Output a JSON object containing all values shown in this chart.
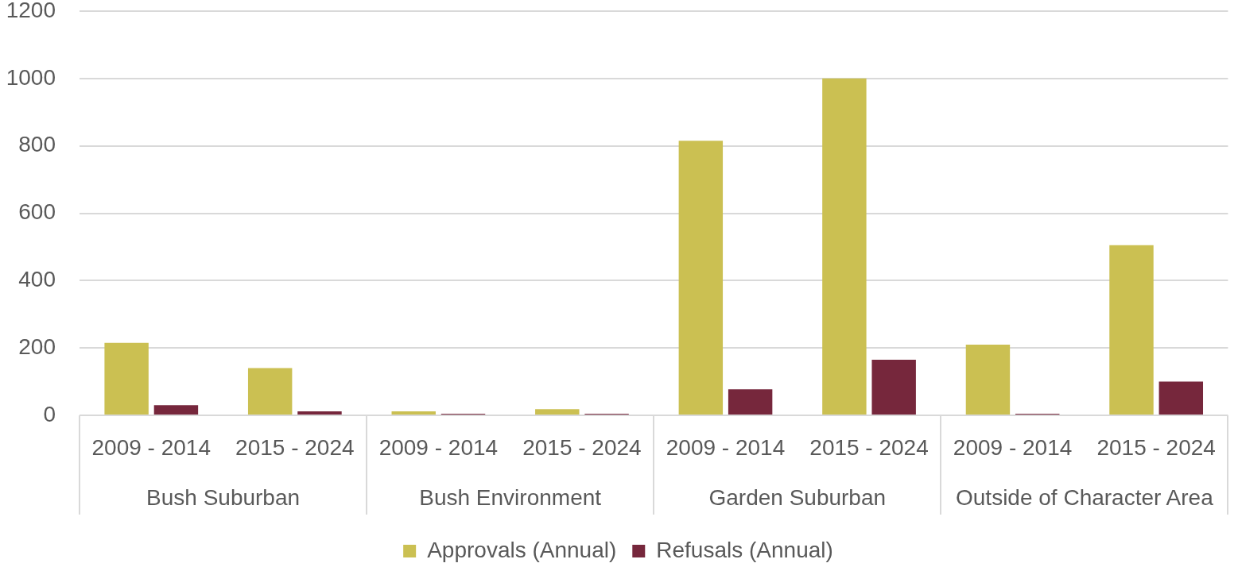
{
  "chart_data": {
    "type": "bar",
    "categories": [
      "2009 - 2014",
      "2015 - 2024",
      "2009 - 2014",
      "2015 - 2024",
      "2009 - 2014",
      "2015 - 2024",
      "2009 - 2014",
      "2015 - 2024"
    ],
    "annotations": [
      "Bush Suburban",
      "Bush Environment",
      "Garden Suburban",
      "Outside of Character Area"
    ],
    "series": [
      {
        "name": "Approvals (Annual)",
        "color": "#cbc052",
        "values": [
          215,
          140,
          12,
          18,
          815,
          1000,
          210,
          505
        ]
      },
      {
        "name": "Refusals (Annual)",
        "color": "#76273c",
        "values": [
          30,
          12,
          5,
          5,
          77,
          165,
          5,
          100
        ]
      }
    ],
    "ylim": [
      0,
      1200
    ],
    "yticks": [
      0,
      200,
      400,
      600,
      800,
      1000,
      1200
    ],
    "grid": "y",
    "legend": "bottom"
  }
}
